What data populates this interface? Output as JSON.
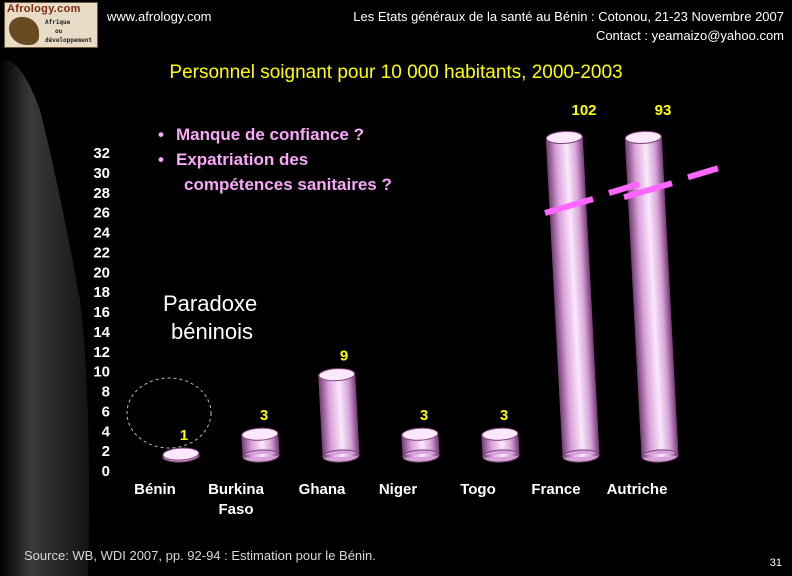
{
  "header": {
    "logo_title": "Afrology.com",
    "logo_subtitle_lines": [
      "Afrique",
      "ou",
      "développement"
    ],
    "site": "www.afrology.com",
    "conference_line1": "Les Etats généraux de la santé au Bénin : Cotonou, 21-23 Novembre 2007",
    "conference_line2": "Contact : yeamaizo@yahoo.com"
  },
  "slide": {
    "title": "Personnel soignant pour 10 000 habitants, 2000-2003",
    "bullets": [
      "Manque de confiance ?",
      "Expatriation des"
    ],
    "bullet_continuation": "compétences sanitaires ?",
    "bullet_symbol": "•",
    "paradox_line1": "Paradoxe",
    "paradox_line2": "béninois",
    "source": "Source: WB, WDI 2007, pp. 92-94 : Estimation pour le Bénin.",
    "page_number": "31"
  },
  "colors": {
    "background": "#000000",
    "title": "#ffff00",
    "bullets": "#f7a8f7",
    "cylinder_light": "#fbe8fb",
    "cylinder_mid": "#d7a2d7",
    "cylinder_dark": "#7a407a",
    "value_labels": "#ffff00",
    "break_marks": "#ff66ff"
  },
  "chart_data": {
    "type": "bar",
    "style": "3d-cylinder",
    "categories": [
      "Bénin",
      "Burkina Faso",
      "Ghana",
      "Niger",
      "Togo",
      "France",
      "Autriche"
    ],
    "category_label_lines": [
      [
        "Bénin"
      ],
      [
        "Burkina",
        "Faso"
      ],
      [
        "Ghana"
      ],
      [
        "Niger"
      ],
      [
        "Togo"
      ],
      [
        "France"
      ],
      [
        "Autriche"
      ]
    ],
    "values": [
      1,
      3,
      9,
      3,
      3,
      102,
      93
    ],
    "value_labels": [
      "1",
      "3",
      "9",
      "3",
      "3",
      "102",
      "93"
    ],
    "ylim": [
      0,
      32
    ],
    "yticks": [
      0,
      2,
      4,
      6,
      8,
      10,
      12,
      14,
      16,
      18,
      20,
      22,
      24,
      26,
      28,
      30,
      32
    ],
    "broken_axis_bars": [
      "France",
      "Autriche"
    ],
    "highlighted_category": "Bénin",
    "grid": false,
    "legend": "none"
  }
}
